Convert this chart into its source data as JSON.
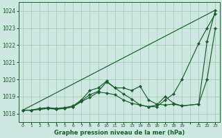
{
  "background_color": "#cce8e0",
  "grid_color": "#aaccbb",
  "line_color": "#1a5c2a",
  "xlabel": "Graphe pression niveau de la mer (hPa)",
  "ylim": [
    1017.5,
    1024.5
  ],
  "xlim": [
    -0.5,
    23.5
  ],
  "yticks": [
    1018,
    1019,
    1020,
    1021,
    1022,
    1023,
    1024
  ],
  "xtick_positions": [
    0,
    1,
    2,
    3,
    4,
    5,
    6,
    7,
    8,
    9,
    10,
    11,
    12,
    13,
    14,
    15,
    16,
    17,
    18,
    19,
    21,
    22,
    23
  ],
  "xtick_labels": [
    "0",
    "1",
    "2",
    "3",
    "4",
    "5",
    "6",
    "7",
    "8",
    "9",
    "1011121314151617181 9",
    "",
    "",
    "",
    "",
    "",
    "",
    "",
    "",
    "",
    "212223",
    "",
    ""
  ],
  "series_straight": {
    "x": [
      0,
      23
    ],
    "y": [
      1018.2,
      1024.05
    ]
  },
  "series1": {
    "x": [
      0,
      1,
      2,
      3,
      4,
      5,
      6,
      7,
      8,
      9,
      10,
      11,
      12,
      13,
      14,
      15,
      16,
      17,
      18,
      19,
      21,
      22,
      23
    ],
    "y": [
      1018.2,
      1018.2,
      1018.3,
      1018.35,
      1018.3,
      1018.35,
      1018.45,
      1018.8,
      1019.35,
      1019.5,
      1019.9,
      1019.5,
      1019.5,
      1019.35,
      1019.6,
      1018.8,
      1018.55,
      1018.5,
      1018.55,
      1018.45,
      1018.55,
      1022.2,
      1024.05
    ]
  },
  "series2": {
    "x": [
      0,
      1,
      2,
      3,
      4,
      5,
      6,
      7,
      8,
      9,
      10,
      11,
      12,
      13,
      14,
      15,
      16,
      17,
      18,
      19,
      21,
      22,
      23
    ],
    "y": [
      1018.2,
      1018.2,
      1018.25,
      1018.3,
      1018.28,
      1018.3,
      1018.4,
      1018.75,
      1019.1,
      1019.3,
      1019.85,
      1019.5,
      1019.15,
      1018.85,
      1018.5,
      1018.4,
      1018.5,
      1019.0,
      1018.6,
      1018.45,
      1018.55,
      1020.0,
      1023.0
    ]
  },
  "series3": {
    "x": [
      0,
      1,
      2,
      3,
      4,
      5,
      6,
      7,
      8,
      9,
      10,
      11,
      12,
      13,
      14,
      15,
      16,
      17,
      18,
      19,
      21,
      22,
      23
    ],
    "y": [
      1018.2,
      1018.2,
      1018.25,
      1018.3,
      1018.25,
      1018.3,
      1018.4,
      1018.7,
      1018.95,
      1019.25,
      1019.2,
      1019.1,
      1018.8,
      1018.6,
      1018.5,
      1018.4,
      1018.4,
      1018.8,
      1019.15,
      1020.0,
      1022.1,
      1023.0,
      1023.85
    ]
  },
  "marker": "D",
  "markersize": 2.2,
  "linewidth": 0.85,
  "xlabel_fontsize": 6.0
}
